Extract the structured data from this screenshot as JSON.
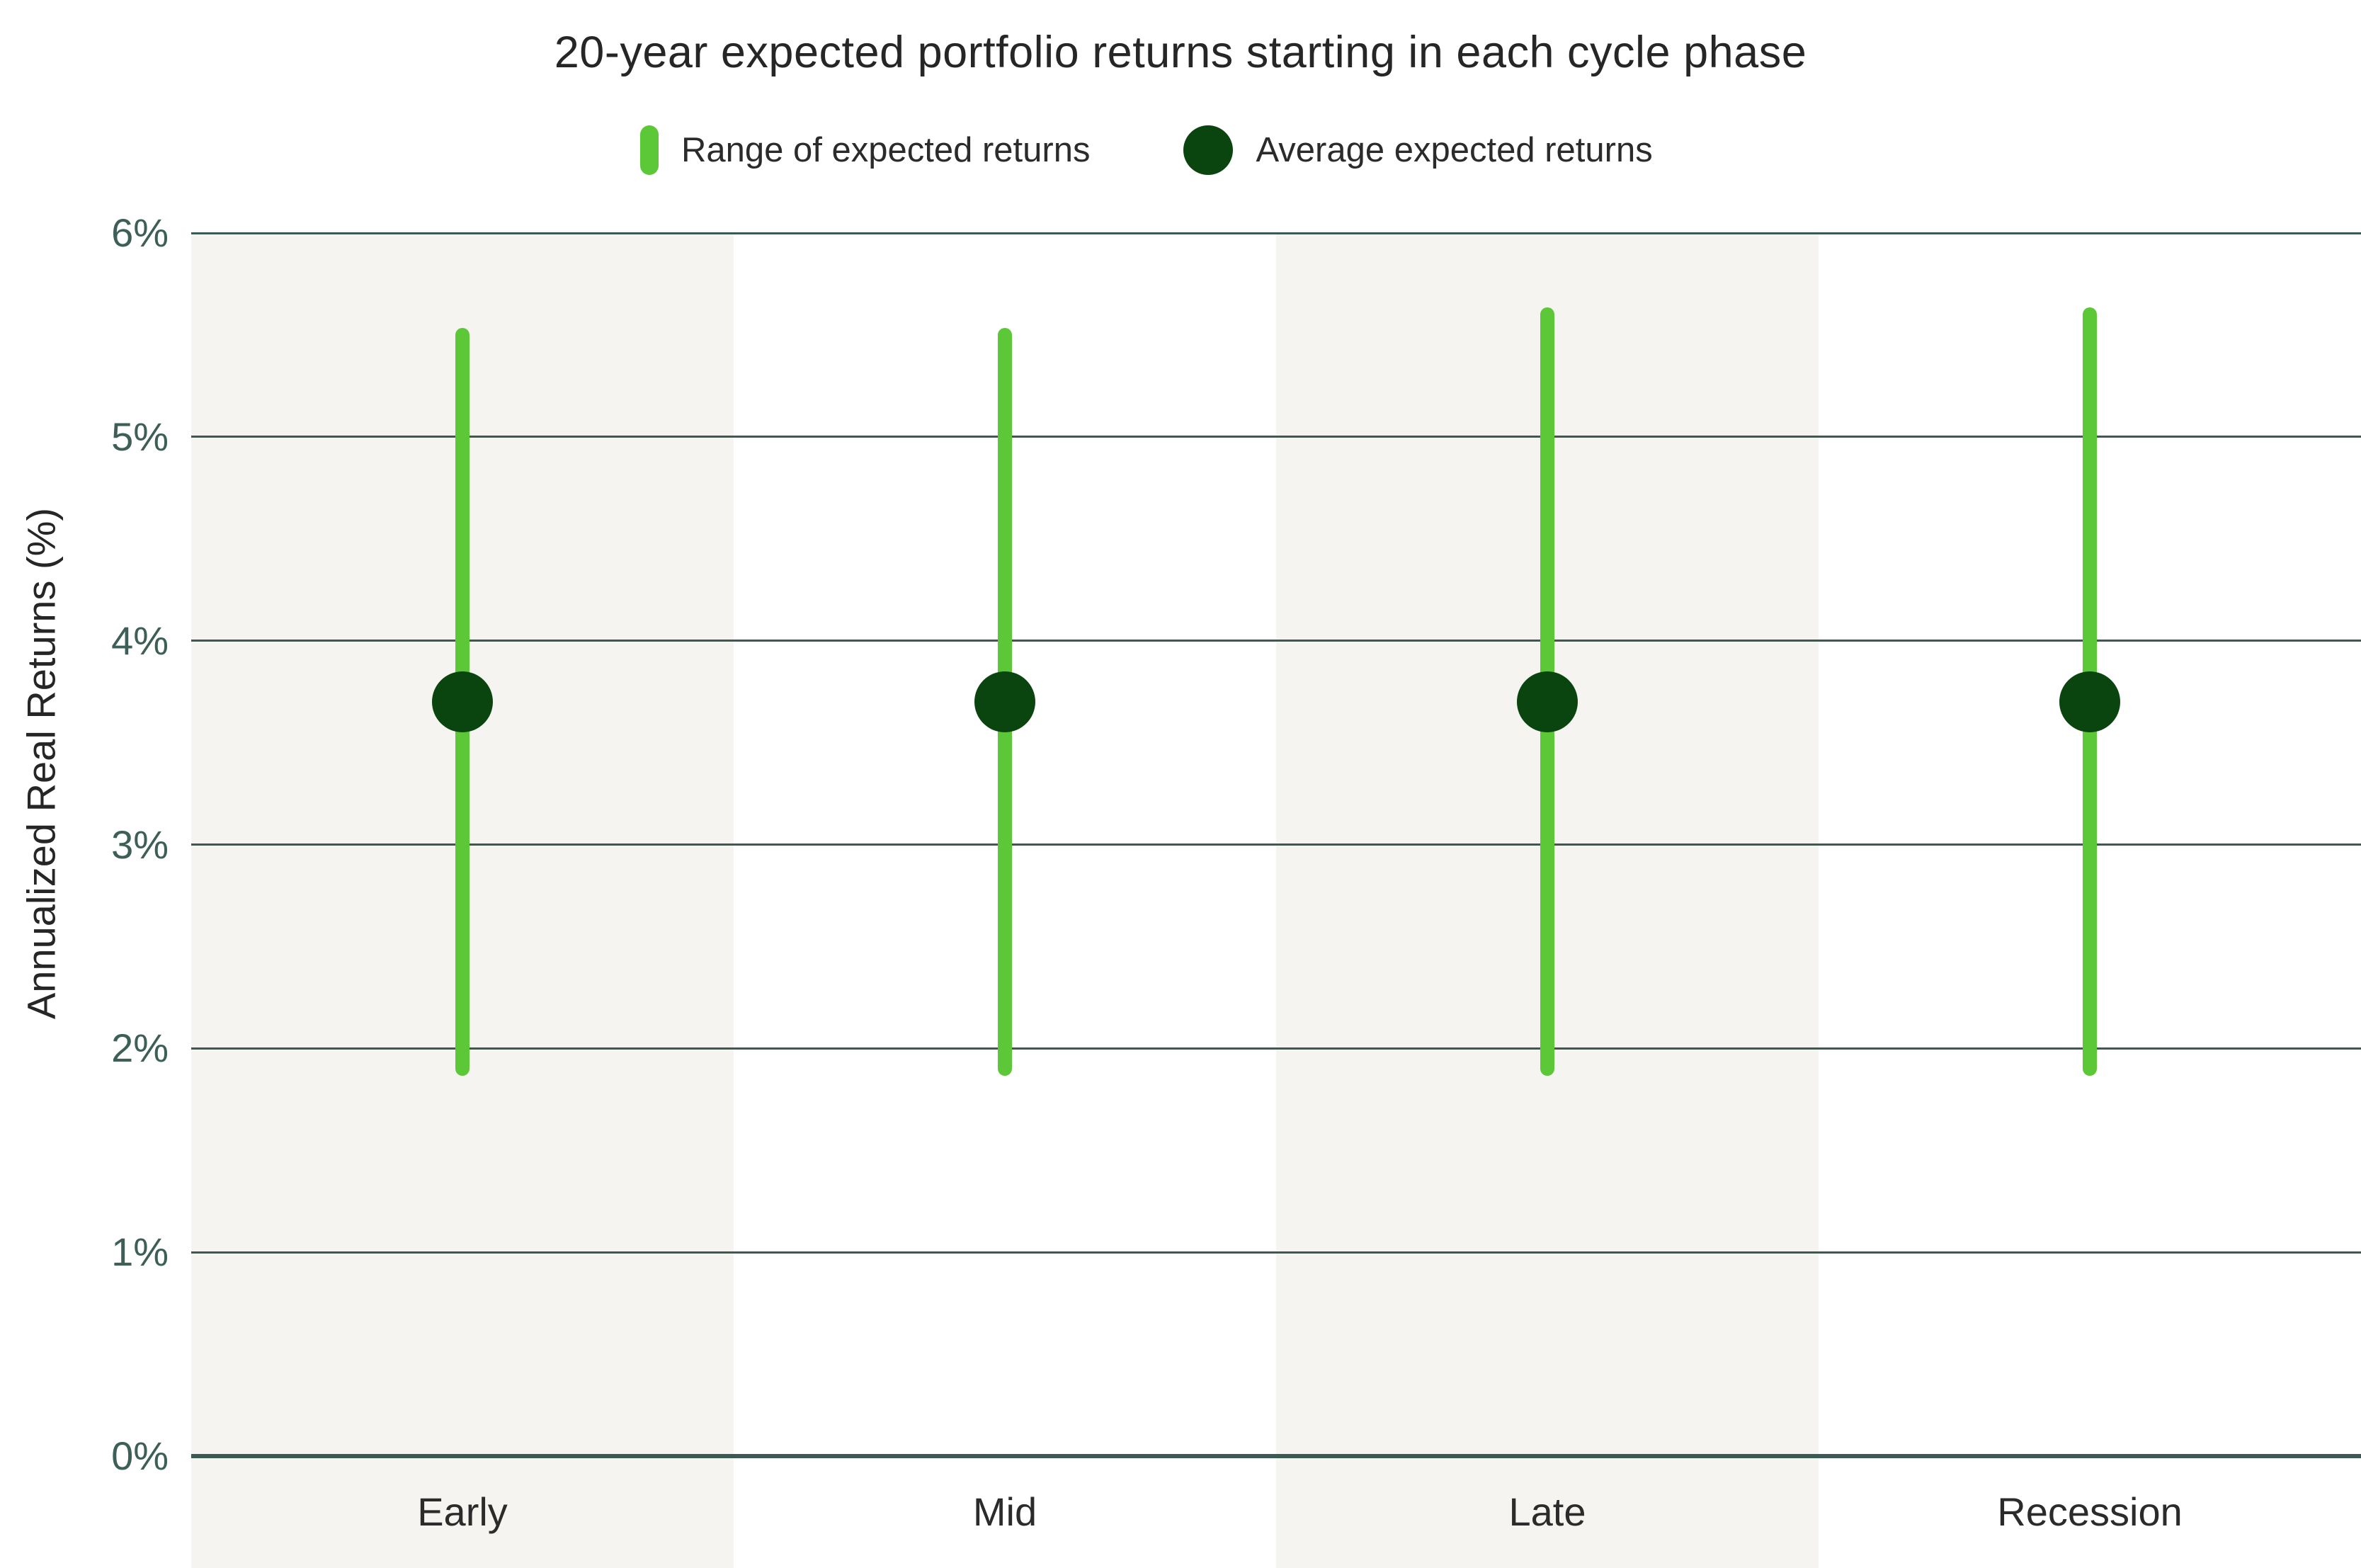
{
  "title": "20-year expected portfolio returns starting in each cycle phase",
  "legend": {
    "range_label": "Range of expected returns",
    "average_label": "Average expected returns"
  },
  "y_axis": {
    "label": "Annualized Real Returns (%)",
    "ticks": [
      "0%",
      "1%",
      "2%",
      "3%",
      "4%",
      "5%",
      "6%"
    ]
  },
  "chart_data": {
    "type": "range-dot",
    "title": "20-year expected portfolio returns starting in each cycle phase",
    "categories": [
      "Early",
      "Mid",
      "Late",
      "Recession"
    ],
    "series": [
      {
        "name": "Range of expected returns",
        "type": "range",
        "low": [
          1.9,
          1.9,
          1.9,
          1.9
        ],
        "high": [
          5.5,
          5.5,
          5.6,
          5.6
        ]
      },
      {
        "name": "Average expected returns",
        "type": "dot",
        "values": [
          3.7,
          3.7,
          3.7,
          3.7
        ]
      }
    ],
    "xlabel": "",
    "ylabel": "Annualized Real Returns (%)",
    "ylim": [
      0,
      6
    ],
    "ytick_step": 1,
    "ytick_format": "percent",
    "grid": true,
    "legend_position": "top",
    "column_shading": "alternating",
    "colors": {
      "range": "#5CC838",
      "average": "#0A4510",
      "gridline": "#3C5A53",
      "band": "#F5F4F1",
      "title_text": "#262626",
      "tick_text": "#3E5F58",
      "category_text": "#2b2b2b"
    }
  }
}
